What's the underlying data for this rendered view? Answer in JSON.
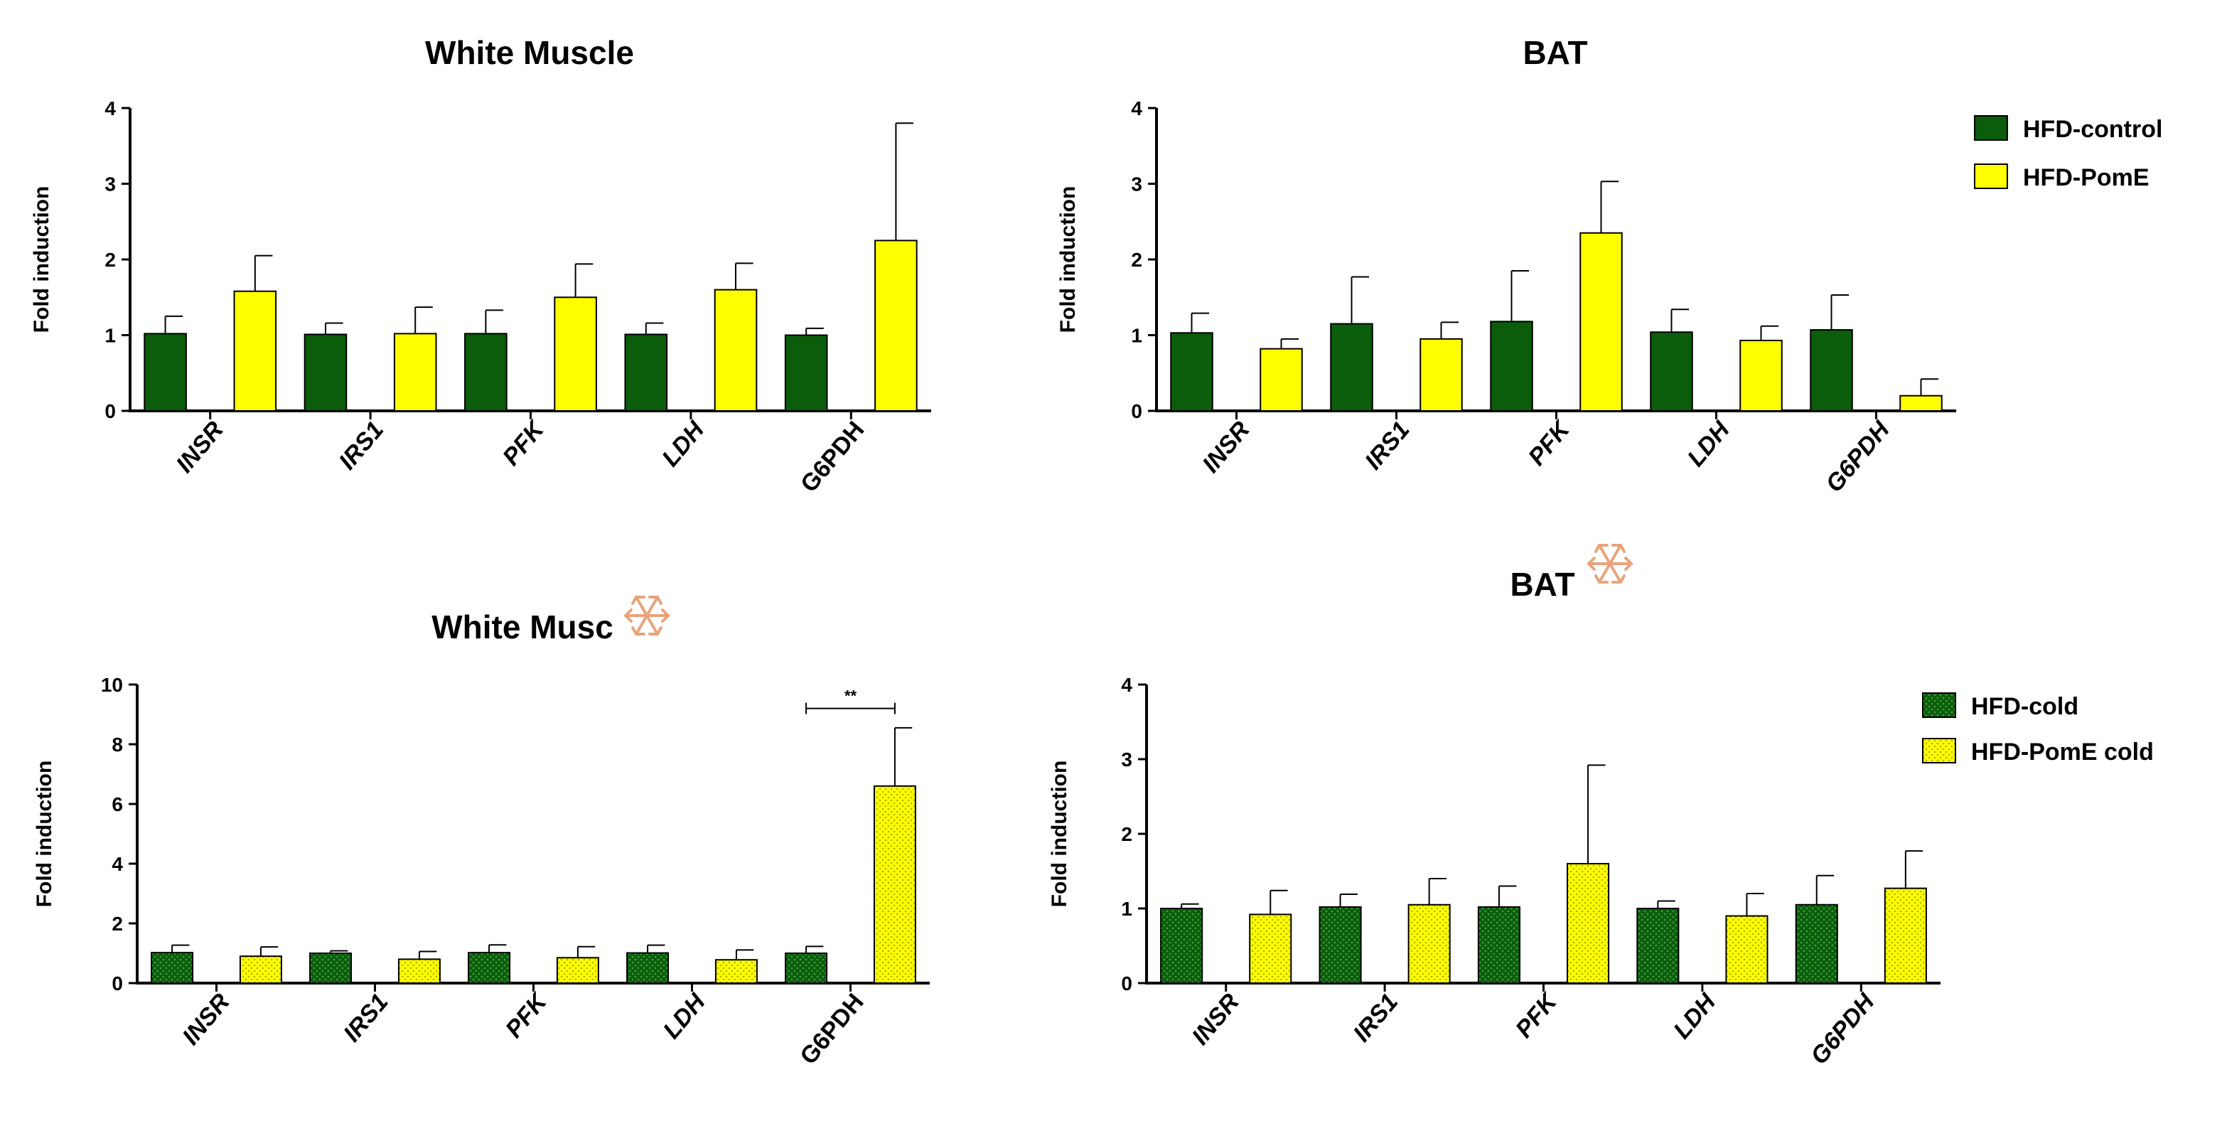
{
  "colors": {
    "control": "#0b5d0b",
    "treated": "#ffff00",
    "axis": "#000000",
    "snowflake": "#e8a47c"
  },
  "legends": {
    "top": [
      "HFD-control",
      "HFD-PomE"
    ],
    "bottom": [
      "HFD-cold",
      "HFD-PomE cold"
    ]
  },
  "chart_data": [
    {
      "type": "bar",
      "title": "White Muscle",
      "ylabel": "Fold induction",
      "ylim": [
        0,
        4
      ],
      "yticks": [
        0,
        1,
        2,
        3,
        4
      ],
      "categories": [
        "INSR",
        "IRS1",
        "PFK",
        "LDH",
        "G6PDH"
      ],
      "italic_categories": [
        true,
        true,
        true,
        true,
        false
      ],
      "pattern": false,
      "series": [
        {
          "values": [
            1.02,
            1.01,
            1.02,
            1.01,
            1.0
          ],
          "errors": [
            0.23,
            0.15,
            0.31,
            0.15,
            0.09
          ]
        },
        {
          "values": [
            1.58,
            1.02,
            1.5,
            1.6,
            2.25
          ],
          "errors": [
            0.47,
            0.35,
            0.44,
            0.35,
            1.55
          ]
        }
      ]
    },
    {
      "type": "bar",
      "title": "BAT",
      "ylabel": "Fold induction",
      "ylim": [
        0,
        4
      ],
      "yticks": [
        0,
        1,
        2,
        3,
        4
      ],
      "categories": [
        "INSR",
        "IRS1",
        "PFK",
        "LDH",
        "G6PDH"
      ],
      "italic_categories": [
        true,
        true,
        true,
        true,
        true
      ],
      "pattern": false,
      "series": [
        {
          "values": [
            1.03,
            1.15,
            1.18,
            1.04,
            1.07
          ],
          "errors": [
            0.26,
            0.62,
            0.67,
            0.3,
            0.46
          ]
        },
        {
          "values": [
            0.82,
            0.95,
            2.35,
            0.93,
            0.2
          ],
          "errors": [
            0.13,
            0.22,
            0.68,
            0.19,
            0.22
          ]
        }
      ],
      "legend": "top"
    },
    {
      "type": "bar",
      "title": "White Musc",
      "ylabel": "Fold induction",
      "ylim": [
        0,
        10
      ],
      "yticks": [
        0,
        2,
        4,
        6,
        8,
        10
      ],
      "categories": [
        "INSR",
        "IRS1",
        "PFK",
        "LDH",
        "G6PDH"
      ],
      "italic_categories": [
        true,
        true,
        true,
        true,
        false
      ],
      "pattern": true,
      "series": [
        {
          "values": [
            1.02,
            1.0,
            1.02,
            1.01,
            1.0
          ],
          "errors": [
            0.25,
            0.08,
            0.26,
            0.26,
            0.23
          ]
        },
        {
          "values": [
            0.9,
            0.8,
            0.85,
            0.78,
            6.6
          ],
          "errors": [
            0.31,
            0.26,
            0.37,
            0.33,
            1.95
          ]
        }
      ],
      "annotation": {
        "text": "**",
        "category": "G6PDH",
        "y": 9.2
      },
      "snowflake": true
    },
    {
      "type": "bar",
      "title": "BAT",
      "ylabel": "Fold induction",
      "ylim": [
        0,
        4
      ],
      "yticks": [
        0,
        1,
        2,
        3,
        4
      ],
      "categories": [
        "INSR",
        "IRS1",
        "PFK",
        "LDH",
        "G6PDH"
      ],
      "italic_categories": [
        true,
        true,
        true,
        true,
        true
      ],
      "pattern": true,
      "series": [
        {
          "values": [
            1.0,
            1.02,
            1.02,
            1.0,
            1.05
          ],
          "errors": [
            0.06,
            0.17,
            0.28,
            0.1,
            0.39
          ]
        },
        {
          "values": [
            0.92,
            1.05,
            1.6,
            0.9,
            1.27
          ],
          "errors": [
            0.32,
            0.35,
            1.32,
            0.3,
            0.5
          ]
        }
      ],
      "legend": "bottom",
      "snowflake": true
    }
  ]
}
